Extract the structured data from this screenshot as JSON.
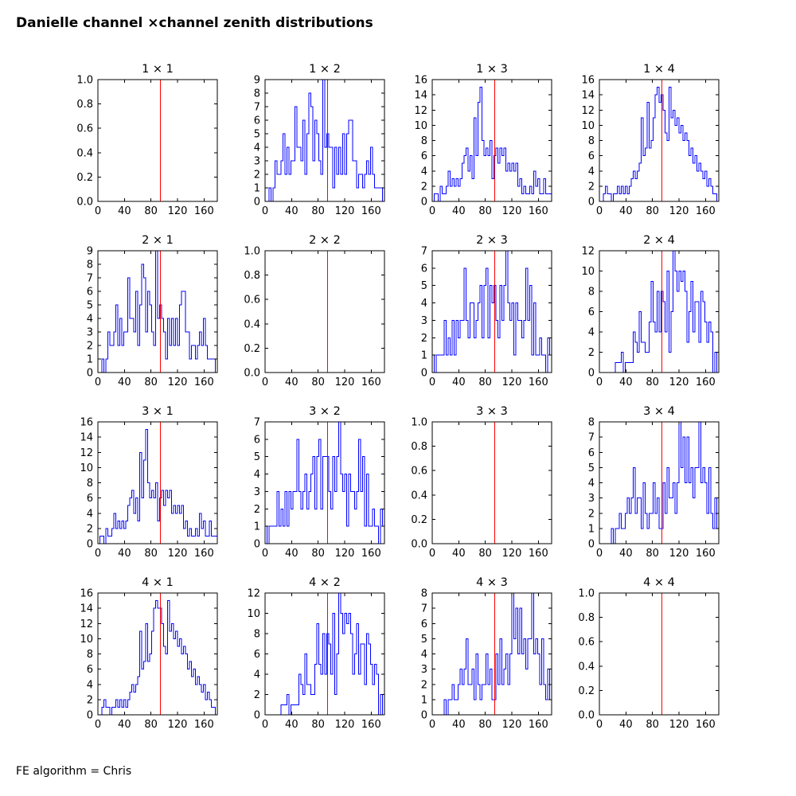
{
  "header": {
    "title": "Danielle channel ×channel zenith distributions"
  },
  "footer": {
    "note": "FE algorithm = Chris"
  },
  "colors": {
    "histogram": "#0000ff",
    "marker_line": "#ff0000",
    "axis": "#000000",
    "text": "#000000",
    "background": "#ffffff"
  },
  "chart_data": [
    {
      "id": "1x1",
      "type": "bar",
      "title": "1 × 1",
      "empty": true,
      "x_range": [
        0,
        180
      ],
      "x_ticks": [
        0,
        40,
        80,
        120,
        160
      ],
      "y_max": 1.0,
      "y_tick_step": 0.2,
      "y_tick_decimals": 1,
      "bin_width": 3,
      "marker_x": 94,
      "values": []
    },
    {
      "id": "1x2",
      "type": "bar",
      "title": "1 × 2",
      "empty": false,
      "x_range": [
        0,
        180
      ],
      "x_ticks": [
        0,
        40,
        80,
        120,
        160
      ],
      "y_max": 9,
      "y_tick_step": 1,
      "y_tick_decimals": 0,
      "bin_width": 3,
      "marker_x": 94,
      "values": [
        0,
        0,
        1,
        0,
        1,
        3,
        2,
        2,
        3,
        5,
        2,
        4,
        2,
        3,
        3,
        7,
        4,
        4,
        3,
        6,
        2,
        5,
        8,
        7,
        3,
        6,
        5,
        3,
        2,
        9,
        4,
        5,
        4,
        4,
        1,
        4,
        2,
        4,
        2,
        5,
        2,
        5,
        6,
        6,
        3,
        3,
        1,
        2,
        2,
        1,
        2,
        3,
        2,
        4,
        2,
        1,
        1,
        1,
        1,
        0
      ]
    },
    {
      "id": "1x3",
      "type": "bar",
      "title": "1 × 3",
      "empty": false,
      "x_range": [
        0,
        180
      ],
      "x_ticks": [
        0,
        40,
        80,
        120,
        160
      ],
      "y_max": 16,
      "y_tick_step": 2,
      "y_tick_decimals": 0,
      "bin_width": 3,
      "marker_x": 94,
      "values": [
        0,
        1,
        1,
        0,
        2,
        1,
        1,
        2,
        4,
        2,
        3,
        2,
        3,
        2,
        3,
        5,
        6,
        7,
        4,
        6,
        3,
        11,
        6,
        13,
        15,
        8,
        6,
        7,
        6,
        8,
        3,
        6,
        7,
        5,
        7,
        6,
        7,
        4,
        5,
        4,
        5,
        4,
        5,
        2,
        3,
        1,
        2,
        1,
        1,
        2,
        1,
        4,
        2,
        3,
        1,
        1,
        3,
        1,
        1,
        1
      ]
    },
    {
      "id": "1x4",
      "type": "bar",
      "title": "1 × 4",
      "empty": false,
      "x_range": [
        0,
        180
      ],
      "x_ticks": [
        0,
        40,
        80,
        120,
        160
      ],
      "y_max": 16,
      "y_tick_step": 2,
      "y_tick_decimals": 0,
      "bin_width": 3,
      "marker_x": 94,
      "values": [
        0,
        0,
        1,
        2,
        1,
        1,
        0,
        1,
        1,
        2,
        1,
        2,
        1,
        2,
        1,
        2,
        3,
        4,
        3,
        4,
        5,
        11,
        6,
        7,
        13,
        7,
        8,
        11,
        14,
        15,
        13,
        14,
        12,
        9,
        8,
        15,
        11,
        12,
        10,
        11,
        9,
        10,
        8,
        9,
        8,
        6,
        7,
        5,
        6,
        4,
        5,
        4,
        3,
        4,
        2,
        3,
        2,
        1,
        1,
        0
      ]
    },
    {
      "id": "2x1",
      "type": "bar",
      "title": "2 × 1",
      "empty": false,
      "x_range": [
        0,
        180
      ],
      "x_ticks": [
        0,
        40,
        80,
        120,
        160
      ],
      "y_max": 9,
      "y_tick_step": 1,
      "y_tick_decimals": 0,
      "bin_width": 3,
      "marker_x": 94,
      "values": [
        0,
        0,
        1,
        0,
        1,
        3,
        2,
        2,
        3,
        5,
        2,
        4,
        2,
        3,
        3,
        7,
        4,
        4,
        3,
        6,
        2,
        5,
        8,
        7,
        3,
        6,
        5,
        3,
        2,
        9,
        4,
        5,
        4,
        3,
        1,
        4,
        2,
        4,
        2,
        4,
        2,
        5,
        6,
        6,
        3,
        3,
        1,
        2,
        2,
        1,
        2,
        3,
        2,
        4,
        2,
        1,
        1,
        1,
        1,
        0
      ]
    },
    {
      "id": "2x2",
      "type": "bar",
      "title": "2 × 2",
      "empty": true,
      "x_range": [
        0,
        180
      ],
      "x_ticks": [
        0,
        40,
        80,
        120,
        160
      ],
      "y_max": 1.0,
      "y_tick_step": 0.2,
      "y_tick_decimals": 1,
      "bin_width": 3,
      "marker_x": 94,
      "values": []
    },
    {
      "id": "2x3",
      "type": "bar",
      "title": "2 × 3",
      "empty": false,
      "x_range": [
        0,
        180
      ],
      "x_ticks": [
        0,
        40,
        80,
        120,
        160
      ],
      "y_max": 7,
      "y_tick_step": 1,
      "y_tick_decimals": 0,
      "bin_width": 3,
      "marker_x": 94,
      "values": [
        1,
        0,
        1,
        1,
        1,
        1,
        3,
        1,
        2,
        1,
        3,
        1,
        3,
        2,
        3,
        3,
        6,
        3,
        2,
        4,
        4,
        2,
        3,
        4,
        5,
        2,
        5,
        6,
        2,
        5,
        4,
        5,
        3,
        2,
        5,
        3,
        5,
        7,
        4,
        3,
        4,
        1,
        4,
        3,
        3,
        2,
        3,
        6,
        3,
        5,
        1,
        4,
        1,
        1,
        2,
        1,
        1,
        0,
        2,
        1
      ]
    },
    {
      "id": "2x4",
      "type": "bar",
      "title": "2 × 4",
      "empty": false,
      "x_range": [
        0,
        180
      ],
      "x_ticks": [
        0,
        40,
        80,
        120,
        160
      ],
      "y_max": 12,
      "y_tick_step": 2,
      "y_tick_decimals": 0,
      "bin_width": 3,
      "marker_x": 94,
      "values": [
        0,
        0,
        0,
        0,
        0,
        0,
        0,
        0,
        1,
        1,
        1,
        2,
        0,
        1,
        1,
        1,
        1,
        4,
        3,
        2,
        6,
        3,
        3,
        2,
        2,
        5,
        9,
        5,
        4,
        8,
        4,
        8,
        7,
        4,
        10,
        2,
        6,
        12,
        10,
        8,
        10,
        9,
        10,
        8,
        3,
        6,
        9,
        4,
        7,
        7,
        3,
        8,
        7,
        5,
        3,
        5,
        4,
        0,
        2,
        0
      ]
    },
    {
      "id": "3x1",
      "type": "bar",
      "title": "3 × 1",
      "empty": false,
      "x_range": [
        0,
        180
      ],
      "x_ticks": [
        0,
        40,
        80,
        120,
        160
      ],
      "y_max": 16,
      "y_tick_step": 2,
      "y_tick_decimals": 0,
      "bin_width": 3,
      "marker_x": 94,
      "values": [
        0,
        1,
        1,
        0,
        2,
        1,
        1,
        2,
        4,
        2,
        3,
        2,
        3,
        2,
        3,
        5,
        6,
        7,
        4,
        6,
        3,
        12,
        6,
        11,
        15,
        8,
        6,
        7,
        6,
        8,
        3,
        6,
        7,
        5,
        7,
        6,
        7,
        4,
        5,
        4,
        5,
        4,
        5,
        2,
        3,
        1,
        2,
        1,
        1,
        2,
        1,
        4,
        2,
        3,
        1,
        1,
        3,
        1,
        1,
        1
      ]
    },
    {
      "id": "3x2",
      "type": "bar",
      "title": "3 × 2",
      "empty": false,
      "x_range": [
        0,
        180
      ],
      "x_ticks": [
        0,
        40,
        80,
        120,
        160
      ],
      "y_max": 7,
      "y_tick_step": 1,
      "y_tick_decimals": 0,
      "bin_width": 3,
      "marker_x": 94,
      "values": [
        1,
        0,
        1,
        1,
        1,
        1,
        3,
        1,
        2,
        1,
        3,
        1,
        3,
        2,
        3,
        3,
        6,
        3,
        2,
        3,
        4,
        2,
        3,
        4,
        5,
        2,
        5,
        6,
        2,
        5,
        5,
        5,
        3,
        2,
        5,
        3,
        5,
        7,
        4,
        3,
        4,
        1,
        4,
        3,
        3,
        2,
        3,
        6,
        3,
        5,
        1,
        4,
        1,
        1,
        2,
        1,
        1,
        0,
        2,
        1
      ]
    },
    {
      "id": "3x3",
      "type": "bar",
      "title": "3 × 3",
      "empty": true,
      "x_range": [
        0,
        180
      ],
      "x_ticks": [
        0,
        40,
        80,
        120,
        160
      ],
      "y_max": 1.0,
      "y_tick_step": 0.2,
      "y_tick_decimals": 1,
      "bin_width": 3,
      "marker_x": 94,
      "values": []
    },
    {
      "id": "3x4",
      "type": "bar",
      "title": "3 × 4",
      "empty": false,
      "x_range": [
        0,
        180
      ],
      "x_ticks": [
        0,
        40,
        80,
        120,
        160
      ],
      "y_max": 8,
      "y_tick_step": 1,
      "y_tick_decimals": 0,
      "bin_width": 3,
      "marker_x": 94,
      "values": [
        0,
        0,
        0,
        0,
        0,
        0,
        1,
        0,
        1,
        1,
        2,
        1,
        1,
        2,
        3,
        2,
        3,
        5,
        2,
        3,
        3,
        1,
        4,
        2,
        1,
        2,
        2,
        4,
        2,
        3,
        1,
        1,
        4,
        2,
        5,
        3,
        3,
        4,
        2,
        4,
        8,
        5,
        7,
        4,
        7,
        4,
        5,
        3,
        5,
        5,
        8,
        4,
        5,
        4,
        2,
        5,
        2,
        1,
        3,
        1
      ]
    },
    {
      "id": "4x1",
      "type": "bar",
      "title": "4 × 1",
      "empty": false,
      "x_range": [
        0,
        180
      ],
      "x_ticks": [
        0,
        40,
        80,
        120,
        160
      ],
      "y_max": 16,
      "y_tick_step": 2,
      "y_tick_decimals": 0,
      "bin_width": 3,
      "marker_x": 94,
      "values": [
        0,
        0,
        1,
        2,
        1,
        1,
        0,
        1,
        1,
        2,
        1,
        2,
        1,
        2,
        1,
        2,
        3,
        4,
        3,
        4,
        5,
        11,
        6,
        7,
        12,
        7,
        8,
        11,
        14,
        15,
        14,
        14,
        12,
        9,
        8,
        15,
        11,
        12,
        10,
        11,
        9,
        10,
        8,
        9,
        8,
        6,
        7,
        5,
        6,
        4,
        5,
        4,
        3,
        4,
        2,
        3,
        2,
        1,
        1,
        0
      ]
    },
    {
      "id": "4x2",
      "type": "bar",
      "title": "4 × 2",
      "empty": false,
      "x_range": [
        0,
        180
      ],
      "x_ticks": [
        0,
        40,
        80,
        120,
        160
      ],
      "y_max": 12,
      "y_tick_step": 2,
      "y_tick_decimals": 0,
      "bin_width": 3,
      "marker_x": 94,
      "values": [
        0,
        0,
        0,
        0,
        0,
        0,
        0,
        0,
        1,
        1,
        1,
        2,
        0,
        1,
        1,
        1,
        1,
        4,
        3,
        2,
        6,
        3,
        3,
        2,
        2,
        5,
        9,
        5,
        4,
        8,
        4,
        8,
        7,
        4,
        10,
        2,
        6,
        12,
        10,
        8,
        10,
        9,
        10,
        8,
        4,
        6,
        9,
        4,
        7,
        7,
        3,
        8,
        7,
        5,
        3,
        5,
        4,
        0,
        2,
        0
      ]
    },
    {
      "id": "4x3",
      "type": "bar",
      "title": "4 × 3",
      "empty": false,
      "x_range": [
        0,
        180
      ],
      "x_ticks": [
        0,
        40,
        80,
        120,
        160
      ],
      "y_max": 8,
      "y_tick_step": 1,
      "y_tick_decimals": 0,
      "bin_width": 3,
      "marker_x": 94,
      "values": [
        0,
        0,
        0,
        0,
        0,
        0,
        1,
        0,
        1,
        1,
        2,
        1,
        1,
        2,
        3,
        2,
        3,
        5,
        2,
        2,
        3,
        1,
        4,
        2,
        1,
        2,
        2,
        4,
        2,
        3,
        1,
        1,
        4,
        2,
        5,
        2,
        3,
        4,
        2,
        4,
        8,
        5,
        7,
        4,
        7,
        4,
        5,
        3,
        5,
        5,
        8,
        4,
        5,
        4,
        2,
        5,
        2,
        1,
        3,
        1
      ]
    },
    {
      "id": "4x4",
      "type": "bar",
      "title": "4 × 4",
      "empty": true,
      "x_range": [
        0,
        180
      ],
      "x_ticks": [
        0,
        40,
        80,
        120,
        160
      ],
      "y_max": 1.0,
      "y_tick_step": 0.2,
      "y_tick_decimals": 1,
      "bin_width": 3,
      "marker_x": 94,
      "values": []
    }
  ]
}
